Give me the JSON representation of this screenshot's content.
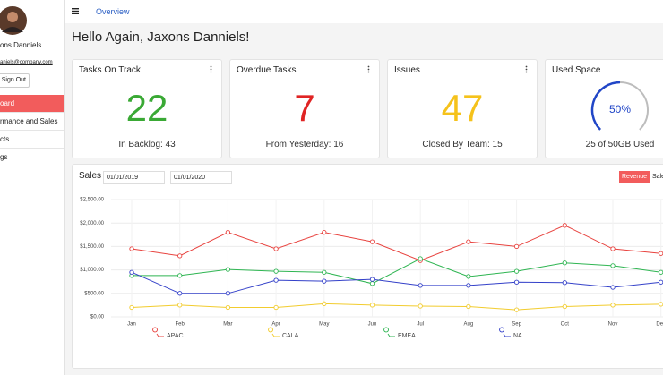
{
  "sidebar": {
    "user_name": "ons Danniels",
    "email": "aniels@company.com",
    "sign_out": "Sign Out",
    "nav": [
      "oard",
      "rmance and Sales",
      "cts",
      "gs"
    ],
    "active": 0
  },
  "header": {
    "title": "Overview"
  },
  "greeting": "Hello Again, Jaxons Danniels!",
  "cards": [
    {
      "title": "Tasks On Track",
      "value": 22,
      "subtitle": "In Backlog: 43",
      "color": "#3aa935"
    },
    {
      "title": "Overdue Tasks",
      "value": 7,
      "subtitle": "From Yesterday: 16",
      "color": "#e02424"
    },
    {
      "title": "Issues",
      "value": 47,
      "subtitle": "Closed By Team: 15",
      "color": "#f5c21b"
    },
    {
      "title": "Used Space",
      "gauge": {
        "value": 50,
        "value_label": "50%",
        "max": 100
      },
      "subtitle": "25 of 50GB Used",
      "color": "#2146c7"
    }
  ],
  "filters": {
    "start": "01/01/2019",
    "end": "01/01/2020",
    "buttons": [
      "Revenue",
      "Sale"
    ]
  },
  "chart_data": {
    "type": "line",
    "title": "Sales",
    "categories": [
      "Jan",
      "Feb",
      "Mar",
      "Apr",
      "May",
      "Jun",
      "Jul",
      "Aug",
      "Sep",
      "Oct",
      "Nov",
      "Dec"
    ],
    "series": [
      {
        "name": "APAC",
        "color": "#e8433f",
        "values": [
          1450,
          1300,
          1800,
          1450,
          1800,
          1600,
          1200,
          1600,
          1500,
          1950,
          1450,
          1350
        ]
      },
      {
        "name": "CALA",
        "color": "#f2cc2e",
        "values": [
          200,
          250,
          200,
          200,
          280,
          250,
          230,
          220,
          150,
          220,
          250,
          270
        ]
      },
      {
        "name": "EMEA",
        "color": "#2fb552",
        "values": [
          880,
          880,
          1010,
          970,
          950,
          710,
          1240,
          860,
          970,
          1150,
          1090,
          950
        ]
      },
      {
        "name": "NA",
        "color": "#3441c9",
        "values": [
          950,
          500,
          500,
          780,
          760,
          800,
          670,
          670,
          740,
          730,
          630,
          740
        ]
      }
    ],
    "ylim": [
      0,
      2500
    ],
    "yticks": [
      {
        "value": 0,
        "label": "$0.00"
      },
      {
        "value": 500,
        "label": "$500.00"
      },
      {
        "value": 1000,
        "label": "$1,000.00"
      },
      {
        "value": 1500,
        "label": "$1,500.00"
      },
      {
        "value": 2000,
        "label": "$2,000.00"
      },
      {
        "value": 2500,
        "label": "$2,500.00"
      }
    ],
    "grid": true
  }
}
